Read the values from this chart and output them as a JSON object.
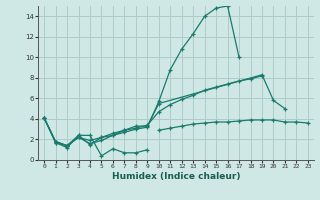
{
  "xlabel": "Humidex (Indice chaleur)",
  "background_color": "#cfe8e5",
  "grid_color": "#b0ccca",
  "line_color": "#1a7a6e",
  "xlim": [
    -0.5,
    23.5
  ],
  "ylim": [
    0,
    15
  ],
  "xticks": [
    0,
    1,
    2,
    3,
    4,
    5,
    6,
    7,
    8,
    9,
    10,
    11,
    12,
    13,
    14,
    15,
    16,
    17,
    18,
    19,
    20,
    21,
    22,
    23
  ],
  "yticks": [
    0,
    2,
    4,
    6,
    8,
    10,
    12,
    14
  ],
  "series": [
    {
      "x": [
        0,
        1,
        2,
        3,
        4,
        5,
        6,
        7,
        8,
        9
      ],
      "y": [
        4.1,
        1.7,
        1.2,
        2.4,
        2.4,
        0.4,
        1.1,
        0.7,
        0.7,
        1.0
      ]
    },
    {
      "x": [
        0,
        1,
        2,
        3,
        4,
        5,
        6,
        7,
        8,
        9,
        10,
        11,
        12,
        13,
        14,
        15,
        16,
        17
      ],
      "y": [
        4.1,
        1.7,
        1.4,
        2.4,
        1.5,
        2.2,
        2.4,
        2.7,
        3.0,
        3.2,
        5.7,
        8.8,
        10.8,
        12.3,
        14.0,
        14.8,
        15.0,
        10.0
      ]
    },
    {
      "x": [
        0,
        1,
        2,
        3,
        4,
        5,
        6,
        7,
        8,
        9,
        10,
        19,
        20,
        21
      ],
      "y": [
        4.1,
        1.8,
        1.4,
        2.2,
        1.6,
        1.9,
        2.4,
        2.9,
        3.3,
        3.3,
        5.5,
        8.3,
        5.8,
        5.0
      ]
    },
    {
      "x": [
        0,
        1,
        2,
        3,
        4,
        5,
        6,
        7,
        8,
        9,
        10,
        11,
        12,
        13,
        14,
        15,
        16,
        17,
        18,
        19
      ],
      "y": [
        4.1,
        1.8,
        1.4,
        2.2,
        1.9,
        2.2,
        2.6,
        2.9,
        3.1,
        3.4,
        4.7,
        5.4,
        5.9,
        6.3,
        6.8,
        7.1,
        7.4,
        7.7,
        7.9,
        8.2
      ]
    },
    {
      "x": [
        10,
        11,
        12,
        13,
        14,
        15,
        16,
        17,
        18,
        19,
        20,
        21,
        22,
        23
      ],
      "y": [
        2.9,
        3.1,
        3.3,
        3.5,
        3.6,
        3.7,
        3.7,
        3.8,
        3.9,
        3.9,
        3.9,
        3.7,
        3.7,
        3.6
      ]
    }
  ]
}
